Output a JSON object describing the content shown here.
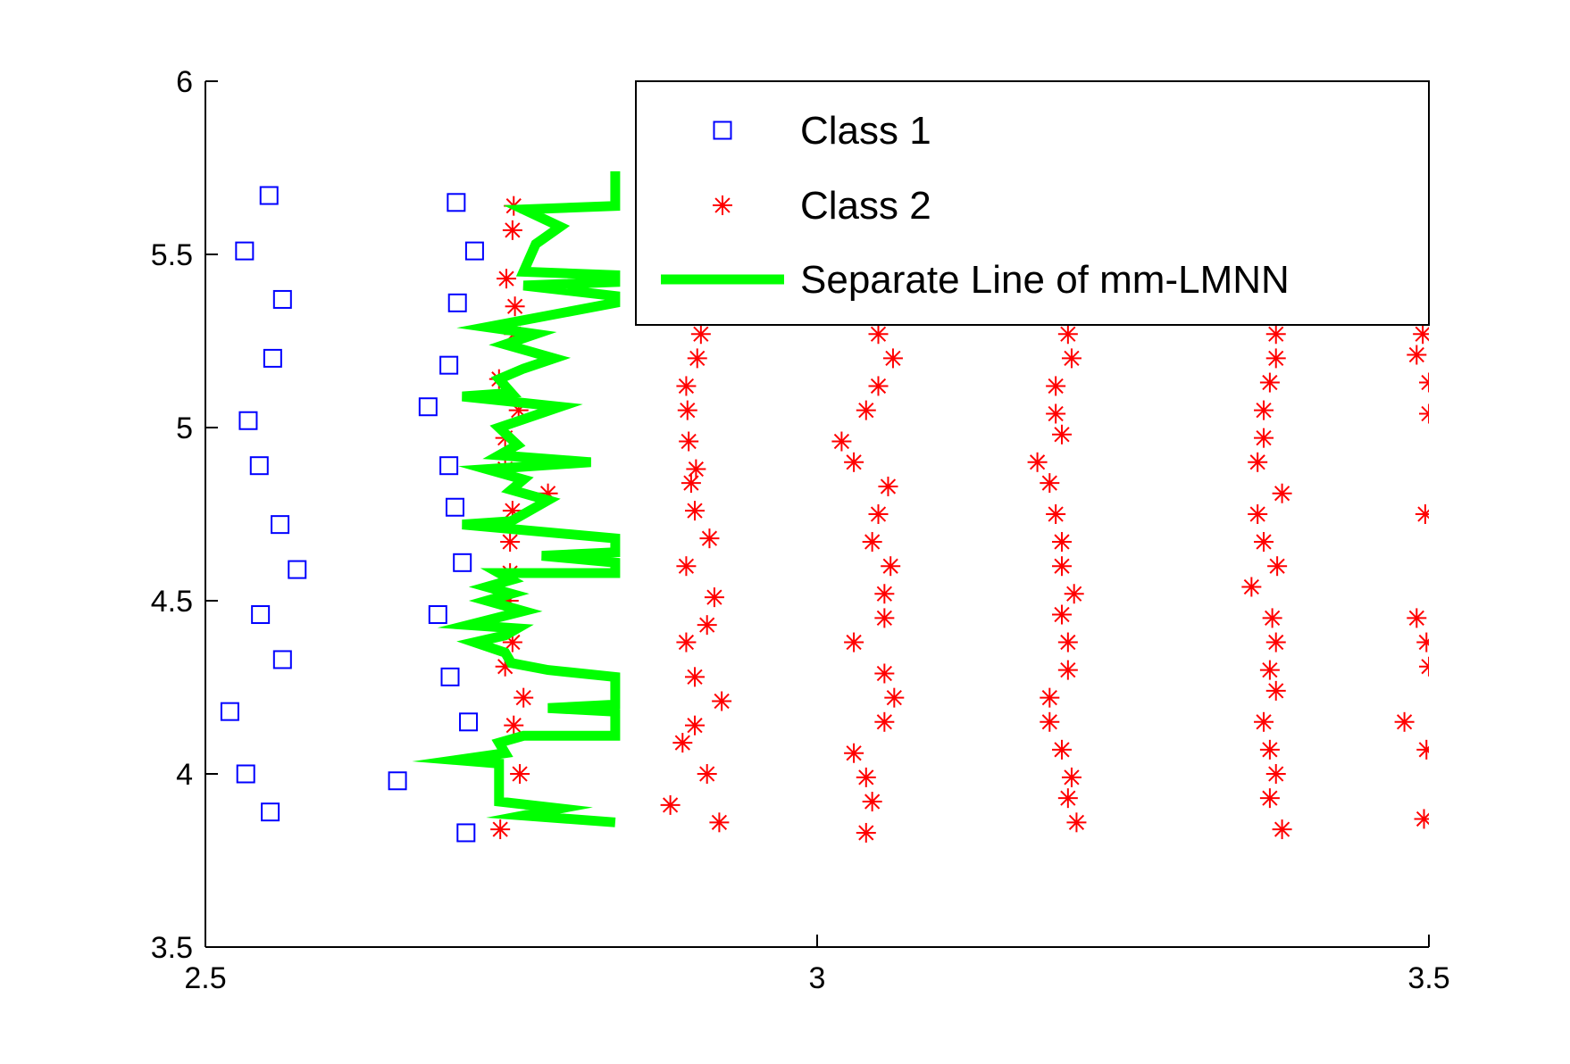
{
  "chart_data": {
    "type": "scatter",
    "xlim": [
      2.5,
      3.5
    ],
    "ylim": [
      3.5,
      6
    ],
    "xticks": [
      "2.5",
      "3",
      "3.5"
    ],
    "yticks": [
      "3.5",
      "4",
      "4.5",
      "5",
      "5.5",
      "6"
    ],
    "grid": false,
    "legend_position": "top-right",
    "series": [
      {
        "name": "Class 1",
        "marker": "square",
        "color": "#0000ff",
        "points": [
          [
            2.552,
            5.67
          ],
          [
            2.532,
            5.51
          ],
          [
            2.563,
            5.37
          ],
          [
            2.555,
            5.2
          ],
          [
            2.535,
            5.02
          ],
          [
            2.544,
            4.89
          ],
          [
            2.561,
            4.72
          ],
          [
            2.575,
            4.59
          ],
          [
            2.545,
            4.46
          ],
          [
            2.563,
            4.33
          ],
          [
            2.52,
            4.18
          ],
          [
            2.533,
            4.0
          ],
          [
            2.553,
            3.89
          ],
          [
            2.705,
            5.65
          ],
          [
            2.72,
            5.51
          ],
          [
            2.706,
            5.36
          ],
          [
            2.699,
            5.18
          ],
          [
            2.682,
            5.06
          ],
          [
            2.699,
            4.89
          ],
          [
            2.704,
            4.77
          ],
          [
            2.71,
            4.61
          ],
          [
            2.69,
            4.46
          ],
          [
            2.7,
            4.28
          ],
          [
            2.715,
            4.15
          ],
          [
            2.657,
            3.98
          ],
          [
            2.713,
            3.83
          ]
        ]
      },
      {
        "name": "Class 2",
        "marker": "star",
        "color": "#ff0000",
        "points": [
          [
            2.752,
            5.64
          ],
          [
            2.751,
            5.57
          ],
          [
            2.746,
            5.43
          ],
          [
            2.753,
            5.35
          ],
          [
            2.752,
            5.27
          ],
          [
            2.74,
            5.14
          ],
          [
            2.756,
            5.05
          ],
          [
            2.745,
            4.97
          ],
          [
            2.745,
            4.88
          ],
          [
            2.78,
            4.81
          ],
          [
            2.751,
            4.76
          ],
          [
            2.749,
            4.67
          ],
          [
            2.749,
            4.58
          ],
          [
            2.748,
            4.5
          ],
          [
            2.751,
            4.38
          ],
          [
            2.745,
            4.31
          ],
          [
            2.76,
            4.22
          ],
          [
            2.752,
            4.14
          ],
          [
            2.757,
            4.0
          ],
          [
            2.741,
            3.84
          ],
          [
            2.905,
            5.27
          ],
          [
            2.902,
            5.2
          ],
          [
            2.893,
            5.12
          ],
          [
            2.894,
            5.05
          ],
          [
            2.895,
            4.96
          ],
          [
            2.901,
            4.88
          ],
          [
            2.897,
            4.84
          ],
          [
            2.9,
            4.76
          ],
          [
            2.912,
            4.68
          ],
          [
            2.893,
            4.6
          ],
          [
            2.916,
            4.51
          ],
          [
            2.91,
            4.43
          ],
          [
            2.893,
            4.38
          ],
          [
            2.9,
            4.28
          ],
          [
            2.922,
            4.21
          ],
          [
            2.9,
            4.14
          ],
          [
            2.89,
            4.09
          ],
          [
            2.91,
            4.0
          ],
          [
            2.88,
            3.91
          ],
          [
            2.92,
            3.86
          ],
          [
            3.05,
            5.27
          ],
          [
            3.062,
            5.2
          ],
          [
            3.05,
            5.12
          ],
          [
            3.04,
            5.05
          ],
          [
            3.02,
            4.96
          ],
          [
            3.03,
            4.9
          ],
          [
            3.058,
            4.83
          ],
          [
            3.05,
            4.75
          ],
          [
            3.045,
            4.67
          ],
          [
            3.06,
            4.6
          ],
          [
            3.055,
            4.52
          ],
          [
            3.055,
            4.45
          ],
          [
            3.03,
            4.38
          ],
          [
            3.055,
            4.29
          ],
          [
            3.063,
            4.22
          ],
          [
            3.055,
            4.15
          ],
          [
            3.03,
            4.06
          ],
          [
            3.04,
            3.99
          ],
          [
            3.045,
            3.92
          ],
          [
            3.04,
            3.83
          ],
          [
            3.205,
            5.27
          ],
          [
            3.208,
            5.2
          ],
          [
            3.195,
            5.12
          ],
          [
            3.195,
            5.04
          ],
          [
            3.2,
            4.98
          ],
          [
            3.18,
            4.9
          ],
          [
            3.19,
            4.84
          ],
          [
            3.195,
            4.75
          ],
          [
            3.2,
            4.67
          ],
          [
            3.2,
            4.6
          ],
          [
            3.21,
            4.52
          ],
          [
            3.2,
            4.46
          ],
          [
            3.205,
            4.38
          ],
          [
            3.205,
            4.3
          ],
          [
            3.19,
            4.22
          ],
          [
            3.19,
            4.15
          ],
          [
            3.2,
            4.07
          ],
          [
            3.208,
            3.99
          ],
          [
            3.205,
            3.93
          ],
          [
            3.212,
            3.86
          ],
          [
            3.375,
            5.27
          ],
          [
            3.375,
            5.2
          ],
          [
            3.37,
            5.13
          ],
          [
            3.365,
            5.05
          ],
          [
            3.365,
            4.97
          ],
          [
            3.36,
            4.9
          ],
          [
            3.38,
            4.81
          ],
          [
            3.36,
            4.75
          ],
          [
            3.365,
            4.67
          ],
          [
            3.376,
            4.6
          ],
          [
            3.355,
            4.54
          ],
          [
            3.372,
            4.45
          ],
          [
            3.375,
            4.38
          ],
          [
            3.37,
            4.3
          ],
          [
            3.375,
            4.24
          ],
          [
            3.365,
            4.15
          ],
          [
            3.37,
            4.07
          ],
          [
            3.375,
            4.0
          ],
          [
            3.37,
            3.93
          ],
          [
            3.38,
            3.84
          ],
          [
            3.5,
            5.42
          ],
          [
            3.495,
            5.27
          ],
          [
            3.49,
            5.21
          ],
          [
            3.5,
            5.13
          ],
          [
            3.5,
            5.04
          ],
          [
            3.497,
            4.75
          ],
          [
            3.49,
            4.45
          ],
          [
            3.498,
            4.38
          ],
          [
            3.5,
            4.31
          ],
          [
            3.48,
            4.15
          ],
          [
            3.498,
            4.07
          ],
          [
            3.496,
            3.87
          ]
        ]
      },
      {
        "name": "Separate Line of mm-LMNN",
        "marker": "line",
        "color": "#00ff00",
        "points": [
          [
            2.835,
            5.74
          ],
          [
            2.835,
            5.64
          ],
          [
            2.76,
            5.63
          ],
          [
            2.79,
            5.58
          ],
          [
            2.77,
            5.53
          ],
          [
            2.76,
            5.45
          ],
          [
            2.835,
            5.44
          ],
          [
            2.835,
            5.42
          ],
          [
            2.76,
            5.41
          ],
          [
            2.835,
            5.38
          ],
          [
            2.835,
            5.36
          ],
          [
            2.73,
            5.29
          ],
          [
            2.77,
            5.27
          ],
          [
            2.745,
            5.24
          ],
          [
            2.785,
            5.2
          ],
          [
            2.76,
            5.17
          ],
          [
            2.74,
            5.14
          ],
          [
            2.75,
            5.1
          ],
          [
            2.71,
            5.09
          ],
          [
            2.79,
            5.06
          ],
          [
            2.74,
            5.0
          ],
          [
            2.755,
            4.95
          ],
          [
            2.74,
            4.92
          ],
          [
            2.815,
            4.9
          ],
          [
            2.73,
            4.88
          ],
          [
            2.76,
            4.85
          ],
          [
            2.75,
            4.82
          ],
          [
            2.78,
            4.79
          ],
          [
            2.75,
            4.73
          ],
          [
            2.71,
            4.72
          ],
          [
            2.835,
            4.68
          ],
          [
            2.835,
            4.64
          ],
          [
            2.775,
            4.63
          ],
          [
            2.835,
            4.61
          ],
          [
            2.835,
            4.58
          ],
          [
            2.74,
            4.58
          ],
          [
            2.75,
            4.56
          ],
          [
            2.73,
            4.54
          ],
          [
            2.75,
            4.52
          ],
          [
            2.73,
            4.5
          ],
          [
            2.76,
            4.47
          ],
          [
            2.715,
            4.43
          ],
          [
            2.755,
            4.42
          ],
          [
            2.745,
            4.4
          ],
          [
            2.72,
            4.38
          ],
          [
            2.745,
            4.35
          ],
          [
            2.75,
            4.32
          ],
          [
            2.78,
            4.3
          ],
          [
            2.835,
            4.28
          ],
          [
            2.835,
            4.2
          ],
          [
            2.78,
            4.19
          ],
          [
            2.835,
            4.18
          ],
          [
            2.835,
            4.11
          ],
          [
            2.76,
            4.11
          ],
          [
            2.74,
            4.09
          ],
          [
            2.745,
            4.06
          ],
          [
            2.705,
            4.04
          ],
          [
            2.74,
            4.03
          ],
          [
            2.74,
            3.92
          ],
          [
            2.79,
            3.9
          ],
          [
            2.76,
            3.88
          ],
          [
            2.835,
            3.86
          ]
        ]
      }
    ]
  }
}
